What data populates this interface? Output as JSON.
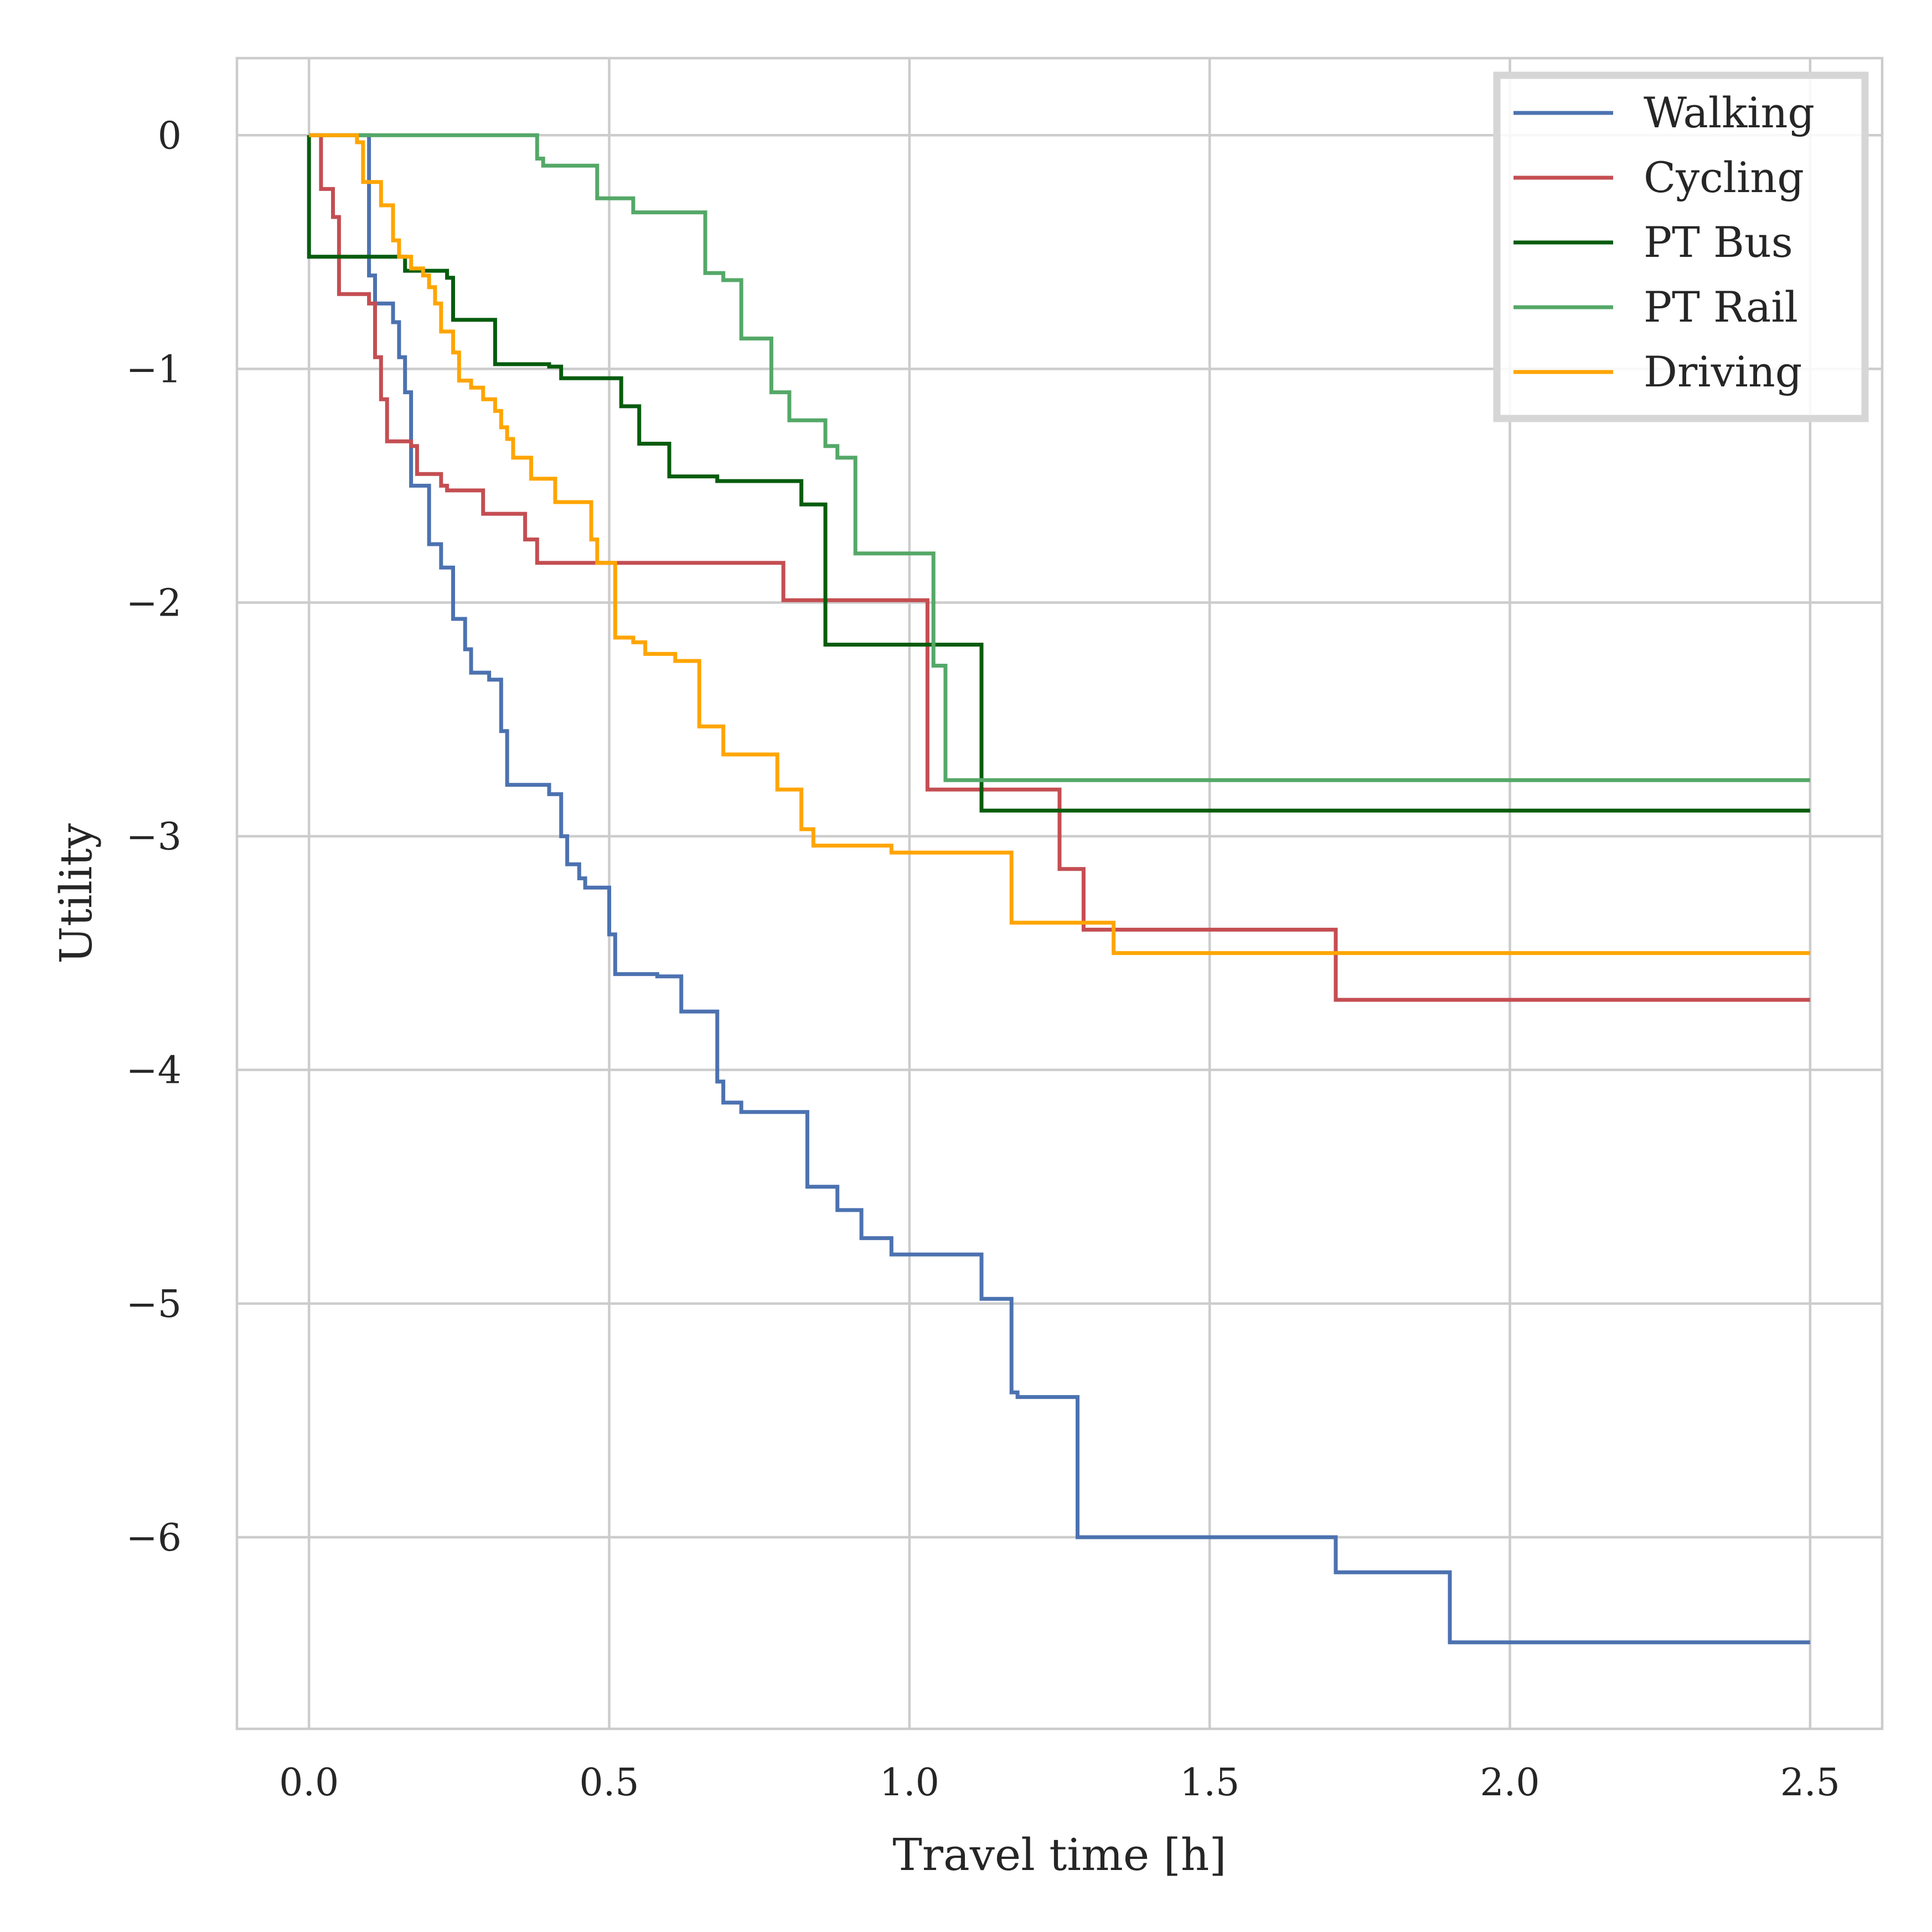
{
  "chart_data": {
    "type": "line",
    "step": true,
    "title": "",
    "xlabel": "Travel time [h]",
    "ylabel": "Utility",
    "xlim": [
      -0.12,
      2.62
    ],
    "ylim": [
      -6.82,
      0.33
    ],
    "xticks": [
      0.0,
      0.5,
      1.0,
      1.5,
      2.0,
      2.5
    ],
    "xtick_labels": [
      "0.0",
      "0.5",
      "1.0",
      "1.5",
      "2.0",
      "2.5"
    ],
    "yticks": [
      0,
      -1,
      -2,
      -3,
      -4,
      -5,
      -6
    ],
    "ytick_labels": [
      "0",
      "−1",
      "−2",
      "−3",
      "−4",
      "−5",
      "−6"
    ],
    "grid": true,
    "legend_position": "top-right",
    "series": [
      {
        "name": "Walking",
        "color": "#4c72b0",
        "points": [
          [
            0,
            0
          ],
          [
            0.1,
            0
          ],
          [
            0.1,
            -0.6
          ],
          [
            0.11,
            -0.72
          ],
          [
            0.14,
            -0.8
          ],
          [
            0.15,
            -0.95
          ],
          [
            0.16,
            -1.1
          ],
          [
            0.17,
            -1.5
          ],
          [
            0.2,
            -1.75
          ],
          [
            0.22,
            -1.85
          ],
          [
            0.24,
            -2.07
          ],
          [
            0.26,
            -2.2
          ],
          [
            0.27,
            -2.3
          ],
          [
            0.3,
            -2.33
          ],
          [
            0.32,
            -2.55
          ],
          [
            0.33,
            -2.78
          ],
          [
            0.4,
            -2.82
          ],
          [
            0.42,
            -3.0
          ],
          [
            0.43,
            -3.12
          ],
          [
            0.45,
            -3.18
          ],
          [
            0.46,
            -3.22
          ],
          [
            0.5,
            -3.42
          ],
          [
            0.51,
            -3.59
          ],
          [
            0.58,
            -3.6
          ],
          [
            0.62,
            -3.75
          ],
          [
            0.68,
            -4.05
          ],
          [
            0.69,
            -4.14
          ],
          [
            0.72,
            -4.18
          ],
          [
            0.83,
            -4.5
          ],
          [
            0.88,
            -4.6
          ],
          [
            0.92,
            -4.72
          ],
          [
            0.97,
            -4.79
          ],
          [
            1.12,
            -4.98
          ],
          [
            1.17,
            -5.38
          ],
          [
            1.18,
            -5.4
          ],
          [
            1.28,
            -6.0
          ],
          [
            1.71,
            -6.15
          ],
          [
            1.9,
            -6.45
          ],
          [
            2.5,
            -6.45
          ]
        ]
      },
      {
        "name": "Cycling",
        "color": "#c44e52",
        "points": [
          [
            0,
            0
          ],
          [
            0.02,
            0
          ],
          [
            0.02,
            -0.23
          ],
          [
            0.04,
            -0.35
          ],
          [
            0.05,
            -0.68
          ],
          [
            0.1,
            -0.72
          ],
          [
            0.11,
            -0.95
          ],
          [
            0.12,
            -1.13
          ],
          [
            0.13,
            -1.31
          ],
          [
            0.17,
            -1.33
          ],
          [
            0.18,
            -1.45
          ],
          [
            0.22,
            -1.5
          ],
          [
            0.23,
            -1.52
          ],
          [
            0.29,
            -1.62
          ],
          [
            0.36,
            -1.73
          ],
          [
            0.38,
            -1.83
          ],
          [
            0.79,
            -1.83
          ],
          [
            0.79,
            -1.99
          ],
          [
            1.03,
            -1.99
          ],
          [
            1.03,
            -2.8
          ],
          [
            1.25,
            -2.8
          ],
          [
            1.25,
            -3.14
          ],
          [
            1.29,
            -3.4
          ],
          [
            1.71,
            -3.4
          ],
          [
            1.71,
            -3.7
          ],
          [
            2.5,
            -3.7
          ]
        ]
      },
      {
        "name": "PT Bus",
        "color": "#065c0e",
        "points": [
          [
            0,
            0
          ],
          [
            0,
            -0.52
          ],
          [
            0.15,
            -0.52
          ],
          [
            0.16,
            -0.58
          ],
          [
            0.22,
            -0.58
          ],
          [
            0.23,
            -0.61
          ],
          [
            0.24,
            -0.79
          ],
          [
            0.31,
            -0.79
          ],
          [
            0.31,
            -0.98
          ],
          [
            0.4,
            -0.99
          ],
          [
            0.42,
            -1.04
          ],
          [
            0.52,
            -1.04
          ],
          [
            0.52,
            -1.16
          ],
          [
            0.55,
            -1.23
          ],
          [
            0.55,
            -1.32
          ],
          [
            0.6,
            -1.32
          ],
          [
            0.6,
            -1.46
          ],
          [
            0.68,
            -1.48
          ],
          [
            0.82,
            -1.48
          ],
          [
            0.82,
            -1.58
          ],
          [
            0.86,
            -1.58
          ],
          [
            0.86,
            -2.18
          ],
          [
            1.12,
            -2.18
          ],
          [
            1.12,
            -2.89
          ],
          [
            2.5,
            -2.89
          ]
        ]
      },
      {
        "name": "PT Rail",
        "color": "#55a868",
        "points": [
          [
            0,
            0
          ],
          [
            0.38,
            0
          ],
          [
            0.38,
            -0.1
          ],
          [
            0.39,
            -0.13
          ],
          [
            0.48,
            -0.13
          ],
          [
            0.48,
            -0.27
          ],
          [
            0.54,
            -0.27
          ],
          [
            0.54,
            -0.33
          ],
          [
            0.66,
            -0.33
          ],
          [
            0.66,
            -0.59
          ],
          [
            0.69,
            -0.62
          ],
          [
            0.72,
            -0.87
          ],
          [
            0.77,
            -0.87
          ],
          [
            0.77,
            -1.1
          ],
          [
            0.8,
            -1.22
          ],
          [
            0.86,
            -1.22
          ],
          [
            0.86,
            -1.33
          ],
          [
            0.88,
            -1.38
          ],
          [
            0.91,
            -1.79
          ],
          [
            1.04,
            -1.79
          ],
          [
            1.04,
            -2.27
          ],
          [
            1.06,
            -2.76
          ],
          [
            2.5,
            -2.76
          ]
        ]
      },
      {
        "name": "Driving",
        "color": "#ffa500",
        "points": [
          [
            0,
            0
          ],
          [
            0.07,
            0
          ],
          [
            0.08,
            -0.03
          ],
          [
            0.09,
            -0.2
          ],
          [
            0.12,
            -0.3
          ],
          [
            0.14,
            -0.45
          ],
          [
            0.15,
            -0.52
          ],
          [
            0.17,
            -0.57
          ],
          [
            0.19,
            -0.6
          ],
          [
            0.2,
            -0.65
          ],
          [
            0.21,
            -0.72
          ],
          [
            0.22,
            -0.84
          ],
          [
            0.24,
            -0.93
          ],
          [
            0.25,
            -1.05
          ],
          [
            0.27,
            -1.08
          ],
          [
            0.29,
            -1.13
          ],
          [
            0.31,
            -1.18
          ],
          [
            0.32,
            -1.25
          ],
          [
            0.33,
            -1.3
          ],
          [
            0.34,
            -1.38
          ],
          [
            0.37,
            -1.47
          ],
          [
            0.41,
            -1.57
          ],
          [
            0.47,
            -1.73
          ],
          [
            0.48,
            -1.83
          ],
          [
            0.51,
            -1.97
          ],
          [
            0.51,
            -2.15
          ],
          [
            0.54,
            -2.17
          ],
          [
            0.56,
            -2.22
          ],
          [
            0.61,
            -2.25
          ],
          [
            0.65,
            -2.53
          ],
          [
            0.69,
            -2.65
          ],
          [
            0.78,
            -2.8
          ],
          [
            0.82,
            -2.97
          ],
          [
            0.84,
            -3.04
          ],
          [
            0.97,
            -3.07
          ],
          [
            1.17,
            -3.37
          ],
          [
            1.34,
            -3.5
          ],
          [
            2.5,
            -3.5
          ]
        ]
      }
    ]
  }
}
